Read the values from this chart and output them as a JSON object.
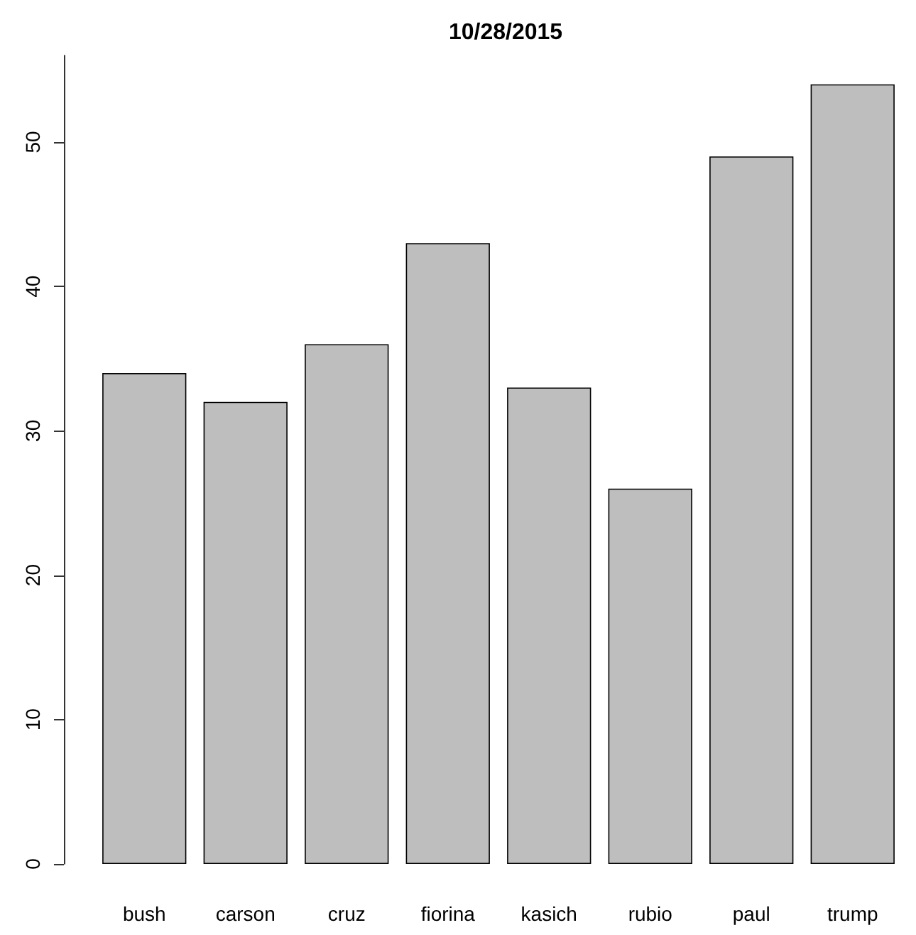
{
  "chart_data": {
    "type": "bar",
    "title": "10/28/2015",
    "categories": [
      "bush",
      "carson",
      "cruz",
      "fiorina",
      "kasich",
      "rubio",
      "paul",
      "trump"
    ],
    "values": [
      34,
      32,
      36,
      43,
      33,
      26,
      49,
      54
    ],
    "color": "#bebebe",
    "ylim": [
      0,
      56
    ],
    "yticks": [
      0,
      10,
      20,
      30,
      40,
      50
    ]
  }
}
